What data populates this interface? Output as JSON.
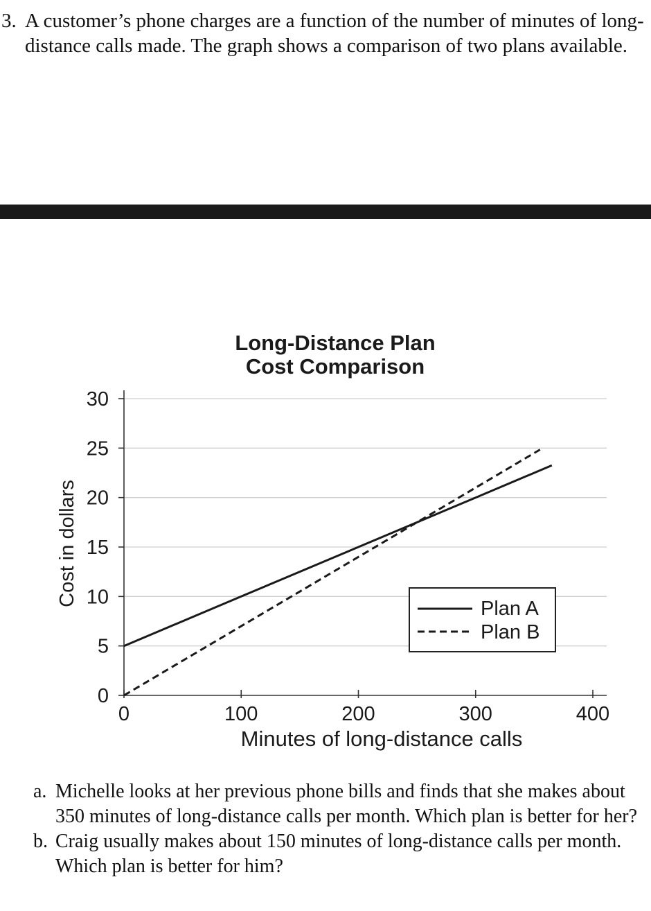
{
  "problem": {
    "number": "3.",
    "text": "A customer’s phone charges are a function of the number of minutes of long-distance calls made. The graph shows a comparison of two plans available."
  },
  "chart_data": {
    "type": "line",
    "title_lines": [
      "Long-Distance Plan",
      "Cost Comparison"
    ],
    "xlabel": "Minutes of long-distance calls",
    "ylabel": "Cost in dollars",
    "xlim": [
      0,
      400
    ],
    "ylim": [
      0,
      30
    ],
    "xticks": [
      0,
      100,
      200,
      300,
      400
    ],
    "yticks": [
      0,
      5,
      10,
      15,
      20,
      25,
      30
    ],
    "grid": "horizontal",
    "legend_position": "lower-right",
    "series": [
      {
        "name": "Plan A",
        "style": "solid",
        "x": [
          0,
          100,
          200,
          300,
          365
        ],
        "y": [
          5,
          10,
          15,
          20,
          23.25
        ]
      },
      {
        "name": "Plan B",
        "style": "dashed",
        "x": [
          0,
          100,
          200,
          300,
          355
        ],
        "y": [
          0,
          7,
          14,
          21,
          24.85
        ]
      }
    ]
  },
  "questions": [
    {
      "label": "a.",
      "text": "Michelle looks at her previous phone bills and finds that she makes about 350 minutes of long-distance calls per month. Which plan is better for her?"
    },
    {
      "label": "b.",
      "text": "Craig usually makes about 150 minutes of long-distance calls per month. Which plan is better for him?"
    }
  ]
}
